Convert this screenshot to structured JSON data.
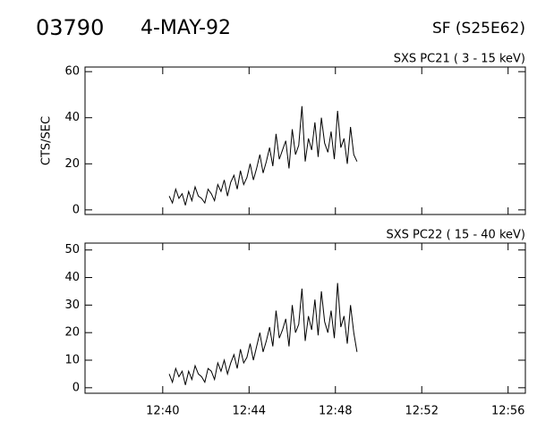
{
  "header": {
    "id": "03790",
    "date": "4-MAY-92",
    "event": "SF (S25E62)"
  },
  "chart_data": [
    {
      "type": "line",
      "title": "SXS PC21  (  3 - 15 keV)",
      "ylabel": "CTS/SEC",
      "color": "#000000",
      "x": [
        760.3,
        760.45,
        760.6,
        760.75,
        760.9,
        761.05,
        761.2,
        761.35,
        761.5,
        761.65,
        761.8,
        761.95,
        762.1,
        762.25,
        762.4,
        762.55,
        762.7,
        762.85,
        763,
        763.15,
        763.3,
        763.45,
        763.6,
        763.75,
        763.9,
        764.05,
        764.2,
        764.35,
        764.5,
        764.65,
        764.8,
        764.95,
        765.1,
        765.25,
        765.4,
        765.55,
        765.7,
        765.85,
        766,
        766.15,
        766.3,
        766.45,
        766.6,
        766.75,
        766.9,
        767.05,
        767.2,
        767.35,
        767.5,
        767.65,
        767.8,
        767.95,
        768.1,
        768.25,
        768.4,
        768.55,
        768.7,
        768.85,
        769
      ],
      "values": [
        6,
        3,
        9,
        5,
        7,
        2,
        8,
        4,
        10,
        6,
        5,
        3,
        9,
        7,
        4,
        11,
        8,
        13,
        6,
        12,
        15,
        9,
        17,
        11,
        14,
        20,
        13,
        18,
        24,
        16,
        21,
        27,
        19,
        33,
        22,
        26,
        30,
        18,
        35,
        24,
        28,
        45,
        21,
        31,
        26,
        38,
        23,
        40,
        29,
        25,
        34,
        22,
        43,
        27,
        31,
        20,
        36,
        24,
        21
      ],
      "xlim": [
        756.4,
        776.8
      ],
      "ylim": [
        -2,
        62
      ],
      "yticks": [
        0,
        20,
        40,
        60
      ]
    },
    {
      "type": "line",
      "title": "SXS PC22  ( 15 - 40 keV)",
      "color": "#000000",
      "x": [
        760.3,
        760.45,
        760.6,
        760.75,
        760.9,
        761.05,
        761.2,
        761.35,
        761.5,
        761.65,
        761.8,
        761.95,
        762.1,
        762.25,
        762.4,
        762.55,
        762.7,
        762.85,
        763,
        763.15,
        763.3,
        763.45,
        763.6,
        763.75,
        763.9,
        764.05,
        764.2,
        764.35,
        764.5,
        764.65,
        764.8,
        764.95,
        765.1,
        765.25,
        765.4,
        765.55,
        765.7,
        765.85,
        766,
        766.15,
        766.3,
        766.45,
        766.6,
        766.75,
        766.9,
        767.05,
        767.2,
        767.35,
        767.5,
        767.65,
        767.8,
        767.95,
        768.1,
        768.25,
        768.4,
        768.55,
        768.7,
        768.85,
        769
      ],
      "values": [
        5,
        2,
        7,
        4,
        6,
        1,
        6,
        3,
        8,
        5,
        4,
        2,
        7,
        6,
        3,
        9,
        6,
        10,
        5,
        9,
        12,
        7,
        14,
        9,
        11,
        16,
        10,
        15,
        20,
        13,
        17,
        22,
        15,
        28,
        18,
        21,
        25,
        15,
        30,
        20,
        23,
        36,
        17,
        26,
        21,
        32,
        19,
        35,
        24,
        20,
        28,
        18,
        38,
        22,
        26,
        16,
        30,
        20,
        13
      ],
      "xlim": [
        756.4,
        776.8
      ],
      "ylim": [
        -2,
        52.5
      ],
      "yticks": [
        0,
        10,
        20,
        30,
        40,
        50
      ],
      "xticks": [
        {
          "value": 760,
          "label": "12:40"
        },
        {
          "value": 764,
          "label": "12:44"
        },
        {
          "value": 768,
          "label": "12:48"
        },
        {
          "value": 772,
          "label": "12:52"
        },
        {
          "value": 776,
          "label": "12:56"
        }
      ]
    }
  ]
}
